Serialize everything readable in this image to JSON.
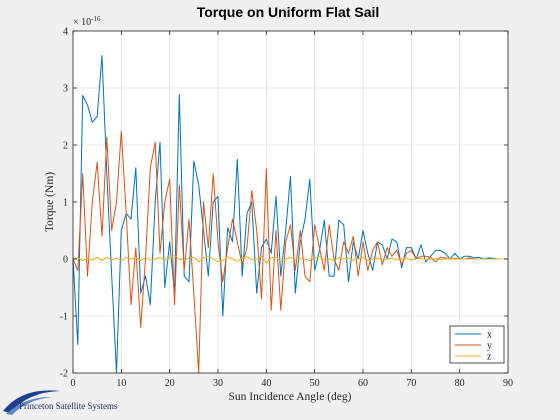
{
  "chart_data": {
    "type": "line",
    "title": "Torque on Uniform Flat Sail",
    "xlabel": "Sun Incidence Angle (deg)",
    "ylabel": "Torque (Nm)",
    "y_exponent_base": "× 10",
    "y_exponent_power": "-16",
    "xlim": [
      0,
      90
    ],
    "ylim": [
      -2,
      4
    ],
    "xticks": [
      "0",
      "10",
      "20",
      "30",
      "40",
      "50",
      "60",
      "70",
      "80",
      "90"
    ],
    "yticks": [
      "-2",
      "-1",
      "0",
      "1",
      "2",
      "3",
      "4"
    ],
    "grid": true,
    "legend_position": "bottom-right",
    "x": [
      0,
      1,
      2,
      3,
      4,
      5,
      6,
      7,
      8,
      9,
      10,
      11,
      12,
      13,
      14,
      15,
      16,
      17,
      18,
      19,
      20,
      21,
      22,
      23,
      24,
      25,
      26,
      27,
      28,
      29,
      30,
      31,
      32,
      33,
      34,
      35,
      36,
      37,
      38,
      39,
      40,
      41,
      42,
      43,
      44,
      45,
      46,
      47,
      48,
      49,
      50,
      51,
      52,
      53,
      54,
      55,
      56,
      57,
      58,
      59,
      60,
      61,
      62,
      63,
      64,
      65,
      66,
      67,
      68,
      69,
      70,
      71,
      72,
      73,
      74,
      75,
      76,
      77,
      78,
      79,
      80,
      81,
      82,
      83,
      84,
      85,
      86,
      87,
      88,
      89,
      90
    ],
    "series": [
      {
        "name": "x",
        "color": "#0072bd",
        "values": [
          0,
          -1.5,
          2.87,
          2.7,
          2.4,
          2.5,
          3.57,
          1.5,
          -0.3,
          -2,
          0.5,
          0.8,
          0.7,
          1.6,
          -0.6,
          -0.3,
          -0.8,
          1.0,
          2.05,
          -0.5,
          0.3,
          -0.6,
          2.88,
          -0.3,
          -0.4,
          1.72,
          1.3,
          0.5,
          -0.3,
          1.0,
          1.1,
          -1.0,
          0.55,
          0.3,
          1.75,
          -0.3,
          0.8,
          1.0,
          -0.6,
          0.2,
          0.35,
          0.1,
          1.1,
          -0.3,
          0.5,
          1.45,
          -0.6,
          0.3,
          0.7,
          1.4,
          -0.2,
          0.15,
          0.68,
          -0.3,
          -0.3,
          0.68,
          0.6,
          -0.4,
          0.3,
          0.0,
          0.5,
          0.1,
          -0.2,
          0.3,
          0.25,
          0.0,
          0.35,
          0.3,
          -0.15,
          0.2,
          0.2,
          0.0,
          0.25,
          -0.05,
          0.05,
          0.15,
          0.15,
          0.1,
          0.0,
          0.1,
          0.0,
          0.05,
          0.05,
          0.02,
          0.03,
          0.0,
          0.02,
          0.01,
          0.0,
          0.0,
          0.0
        ]
      },
      {
        "name": "y",
        "color": "#d95319",
        "values": [
          0,
          -0.2,
          1.5,
          -0.3,
          1.0,
          1.7,
          0.4,
          2.14,
          0.5,
          1.0,
          2.24,
          0.8,
          -0.8,
          0.2,
          -1.2,
          0.0,
          1.6,
          2.05,
          0.1,
          1.0,
          1.4,
          -0.8,
          1.3,
          -0.2,
          0.7,
          -0.6,
          -2.0,
          1.0,
          0.2,
          1.5,
          0.3,
          -0.4,
          0.2,
          0.7,
          0.3,
          -0.1,
          0.2,
          1.2,
          0.5,
          -0.7,
          1.58,
          -0.9,
          0.5,
          -0.9,
          0.3,
          0.6,
          -0.2,
          0.5,
          -0.3,
          -0.4,
          0.6,
          0.2,
          -0.2,
          0.6,
          0.0,
          -0.2,
          0.3,
          0.1,
          0.4,
          -0.3,
          0.3,
          -0.2,
          0.15,
          0.3,
          -0.1,
          0.2,
          0.05,
          0.15,
          -0.1,
          0.1,
          0.15,
          0.0,
          0.05,
          0.05,
          0.03,
          -0.05,
          0.03,
          0.02,
          0.0,
          0.01,
          0.0,
          0.0,
          0.02,
          0.0,
          0.0,
          0.0,
          0.0,
          0.0,
          0.0,
          0.0,
          0.0
        ]
      },
      {
        "name": "z",
        "color": "#edb120",
        "values": [
          0,
          0.03,
          -0.03,
          0.02,
          -0.02,
          0.03,
          -0.03,
          0.03,
          -0.02,
          0.02,
          -0.03,
          0.03,
          0.0,
          0.02,
          -0.03,
          0.03,
          -0.02,
          0.0,
          0.03,
          -0.02,
          0.02,
          0.06,
          0.0,
          -0.03,
          0.02,
          0.03,
          -0.05,
          0.02,
          0.05,
          0.0,
          -0.05,
          -0.03,
          0.04,
          0.0,
          -0.04,
          0.02,
          0.04,
          -0.02,
          0.0,
          0.05,
          -0.07,
          0.02,
          0.03,
          -0.04,
          0.0,
          0.03,
          -0.02,
          0.02,
          0.0,
          -0.03,
          0.02,
          0.04,
          -0.02,
          0.0,
          -0.03,
          0.03,
          0.0,
          0.02,
          -0.02,
          0.0,
          0.03,
          -0.03,
          0.0,
          0.02,
          -0.02,
          0.0,
          0.02,
          -0.02,
          0.0,
          0.02,
          -0.02,
          0.0,
          0.01,
          -0.01,
          0.0,
          0.01,
          -0.01,
          0.0,
          0.01,
          0.0,
          0.0,
          0.0,
          0.0,
          0.0,
          0.0,
          0.0,
          0.0,
          0.0,
          0.0,
          0.0,
          0.0
        ]
      }
    ]
  },
  "footer": {
    "logo": "pss-swoosh-logo",
    "text": "Princeton Satellite Systems"
  },
  "colors": {
    "figure_background": "#f0f0f0",
    "axes_background": "#ffffff",
    "grid": "#e3e3e3"
  }
}
